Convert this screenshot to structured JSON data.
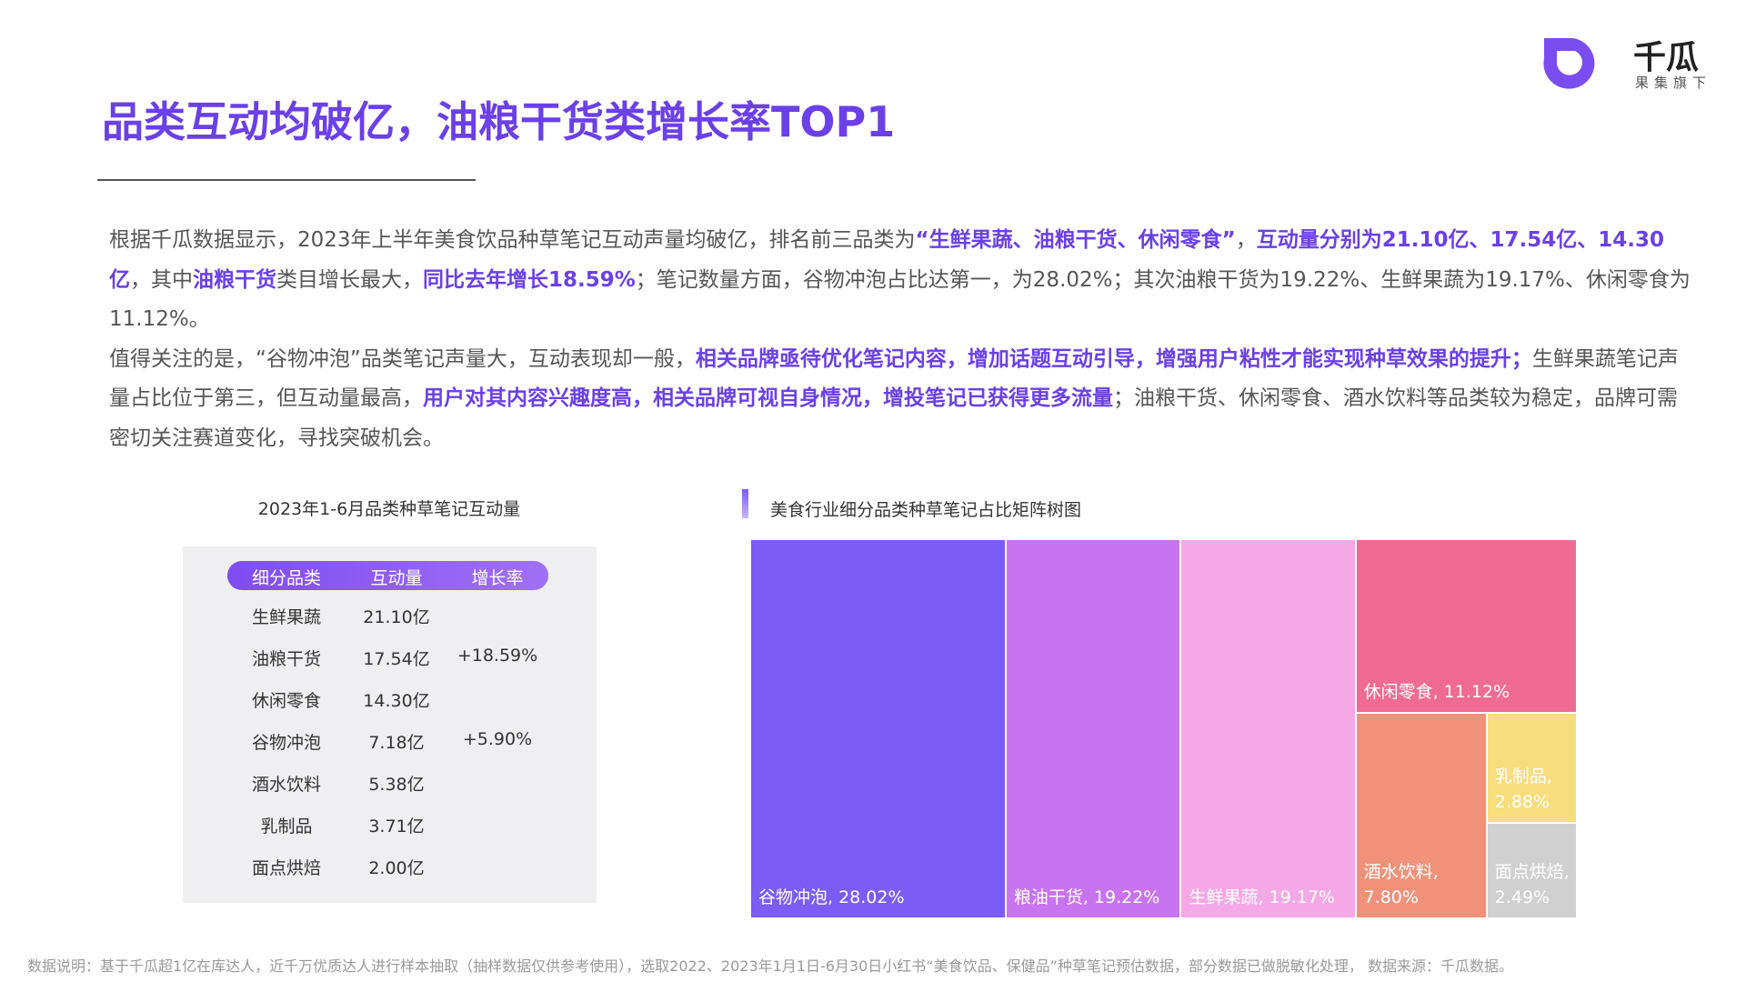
{
  "header": {
    "title": "品类互动均破亿，油粮干货类增长率TOP1",
    "brand": "千瓜",
    "brand_sub": "果集旗下"
  },
  "paragraphs": [
    [
      {
        "text": "根据千瓜数据显示，2023年上半年美食饮品种草笔记互动声量均破亿，排名前三品类为"
      },
      {
        "text": "“生鲜果蔬、油粮干货、休闲零食”",
        "highlight": true
      },
      {
        "text": "，"
      },
      {
        "text": "互动量分别为21.10亿、17.54亿、14.30亿",
        "highlight": true
      },
      {
        "text": "，其中"
      },
      {
        "text": "油粮干货",
        "highlight": true
      },
      {
        "text": "类目增长最大，"
      },
      {
        "text": "同比去年增长18.59%",
        "highlight": true
      },
      {
        "text": "；笔记数量方面，谷物冲泡占比达第一，为28.02%；其次油粮干货为19.22%、生鲜果蔬为19.17%、休闲零食为11.12%。"
      }
    ],
    [
      {
        "text": "值得关注的是，“谷物冲泡”品类笔记声量大，互动表现却一般，"
      },
      {
        "text": "相关品牌亟待优化笔记内容，增加话题互动引导，增强用户粘性才能实现种草效果的提升；",
        "highlight": true
      },
      {
        "text": "生鲜果蔬笔记声量占比位于第三，但互动量最高，"
      },
      {
        "text": "用户对其内容兴趣度高，相关品牌可视自身情况，增投笔记已获得更多流量",
        "highlight": true
      },
      {
        "text": "；油粮干货、休闲零食、酒水饮料等品类较为稳定，品牌可需密切关注赛道变化，寻找突破机会。"
      }
    ]
  ],
  "table": {
    "title": "2023年1-6月品类种草笔记互动量",
    "columns": [
      "细分品类",
      "互动量",
      "增长率"
    ],
    "rows": [
      [
        "生鲜果蔬",
        "21.10亿",
        null
      ],
      [
        "油粮干货",
        "17.54亿",
        "+18.59%"
      ],
      [
        "休闲零食",
        "14.30亿",
        null
      ],
      [
        "谷物冲泡",
        "7.18亿",
        "+5.90%"
      ],
      [
        "酒水饮料",
        "5.38亿",
        null
      ],
      [
        "乳制品",
        "3.71亿",
        null
      ],
      [
        "面点烘焙",
        "2.00亿",
        null
      ]
    ]
  },
  "chart_data": {
    "type": "treemap",
    "title": "美食行业细分品类种草笔记占比矩阵树图",
    "values": [
      28.02,
      19.22,
      19.17,
      11.12,
      7.8,
      2.88,
      2.49
    ],
    "value_labels": [
      "谷物冲泡, 28.02%",
      "粮油干货, 19.22%",
      "生鲜果蔬, 19.17%",
      "休闲零食, 11.12%",
      "酒水饮料, 7.80%",
      "乳制品, 2.88%",
      "面点烘焙, 2.49%"
    ],
    "colors": [
      "#7b5cf5",
      "#c873f0",
      "#f4a8e6",
      "#f06b93",
      "#f0917a",
      "#f8dd7c",
      "#d0d0d0"
    ]
  },
  "footer": "数据说明：基于千瓜超1亿在库达人，近千万优质达人进行样本抽取（抽样数据仅供参考使用），选取2022、2023年1月1日-6月30日小红书“美食饮品、保健品”种草笔记预估数据，部分数据已做脱敏化处理， 数据来源：千瓜数据。"
}
